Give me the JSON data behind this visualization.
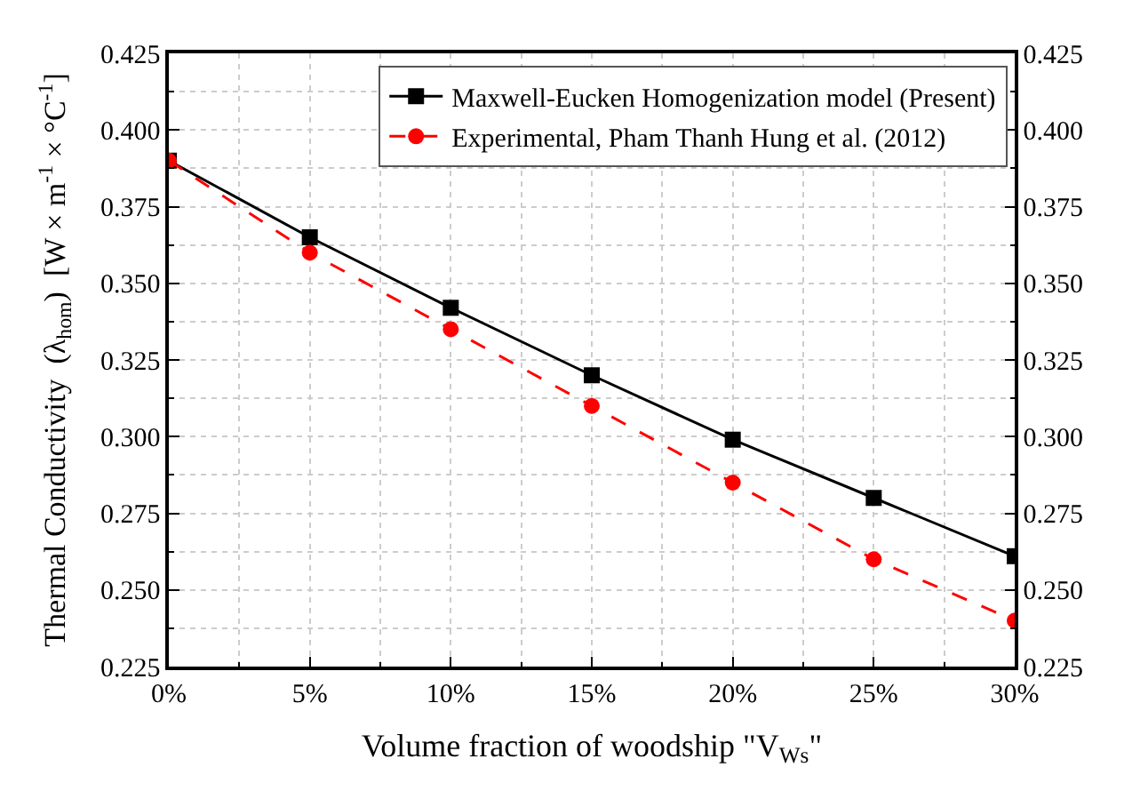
{
  "chart_data": {
    "type": "line",
    "xlabel": "Volume fraction of woodship \"V$_{Ws}$\"",
    "ylabel": "Thermal Conductivity  (λ$_{hom}$)  [W × m$^{-1}$ × °C$^{-1}$]",
    "x": [
      0,
      5,
      10,
      15,
      20,
      25,
      30
    ],
    "series": [
      {
        "name": "Maxwell-Eucken Homogenization model (Present)",
        "color": "#000000",
        "marker": "square",
        "line_style": "solid",
        "values": [
          0.39,
          0.365,
          0.342,
          0.32,
          0.299,
          0.28,
          0.261
        ]
      },
      {
        "name": "Experimental, Pham Thanh Hung et al. (2012)",
        "color": "#ff0000",
        "marker": "circle",
        "line_style": "dashed",
        "values": [
          0.39,
          0.36,
          0.335,
          0.31,
          0.285,
          0.26,
          0.24
        ]
      }
    ],
    "xlim": [
      0,
      30
    ],
    "xticks": [
      {
        "value": 0,
        "label": "0%"
      },
      {
        "value": 5,
        "label": "5%"
      },
      {
        "value": 10,
        "label": "10%"
      },
      {
        "value": 15,
        "label": "15%"
      },
      {
        "value": 20,
        "label": "20%"
      },
      {
        "value": 25,
        "label": "25%"
      },
      {
        "value": 30,
        "label": "30%"
      }
    ],
    "ylim": [
      0.225,
      0.425
    ],
    "yticks": [
      {
        "value": 0.225,
        "label": "0.225"
      },
      {
        "value": 0.25,
        "label": "0.250"
      },
      {
        "value": 0.275,
        "label": "0.275"
      },
      {
        "value": 0.3,
        "label": "0.300"
      },
      {
        "value": 0.325,
        "label": "0.325"
      },
      {
        "value": 0.35,
        "label": "0.350"
      },
      {
        "value": 0.375,
        "label": "0.375"
      },
      {
        "value": 0.4,
        "label": "0.400"
      },
      {
        "value": 0.425,
        "label": "0.425"
      }
    ],
    "y2lim": [
      0.225,
      0.425
    ],
    "y2ticks": [
      {
        "value": 0.225,
        "label": "0.225"
      },
      {
        "value": 0.25,
        "label": "0.250"
      },
      {
        "value": 0.275,
        "label": "0.275"
      },
      {
        "value": 0.3,
        "label": "0.300"
      },
      {
        "value": 0.325,
        "label": "0.325"
      },
      {
        "value": 0.35,
        "label": "0.350"
      },
      {
        "value": 0.375,
        "label": "0.375"
      },
      {
        "value": 0.4,
        "label": "0.400"
      },
      {
        "value": 0.425,
        "label": "0.425"
      }
    ],
    "grid": true,
    "legend": "top"
  }
}
